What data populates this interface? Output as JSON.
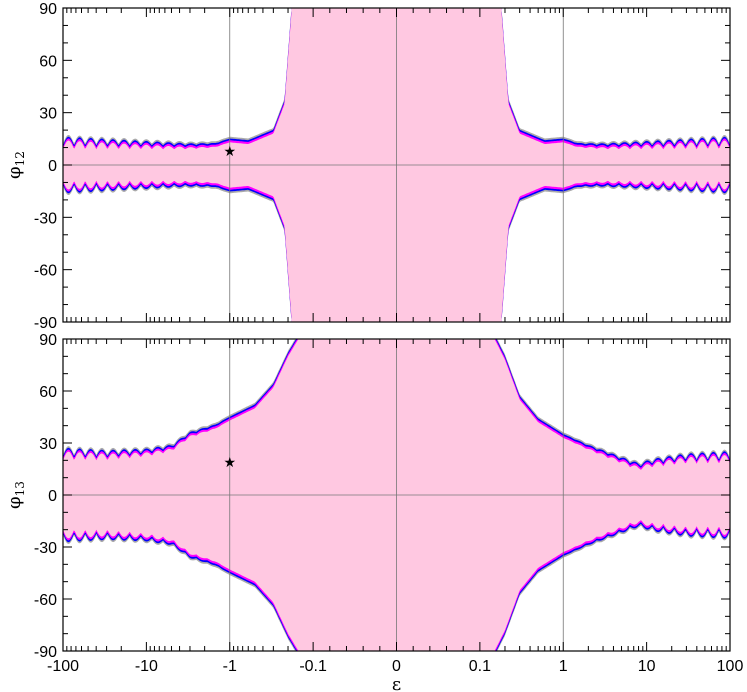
{
  "colors": {
    "allowed_fill": "#ffc8e1",
    "band_gray": "#aaaaaa",
    "band_magenta": "#ff00ff",
    "band_blue": "#0000ff",
    "frame": "#000000",
    "grid": "#777777"
  },
  "chart_data": [
    {
      "type": "area",
      "ylabel_main": "φ",
      "ylabel_sub": "12",
      "xscale": "symmetric-log",
      "xlim": [
        -100,
        100
      ],
      "ylim": [
        -90,
        90
      ],
      "xticks": [
        "-100",
        "-10",
        "-1",
        "-0.1",
        "0",
        "0.1",
        "1",
        "10",
        "100"
      ],
      "yticks": [
        "90",
        "60",
        "30",
        "0",
        "-30",
        "-60",
        "-90"
      ],
      "x_tick_values": [
        -100,
        -10,
        -1,
        -0.1,
        0,
        0.1,
        1,
        10,
        100
      ],
      "y_tick_values": [
        90,
        60,
        30,
        0,
        -30,
        -60,
        -90
      ],
      "grid": true,
      "marker": {
        "symbol": "★",
        "x": -1,
        "y": 8
      },
      "boundary": {
        "x": [
          -100,
          -30,
          -10,
          -3,
          -1.5,
          -1,
          -0.6,
          -0.3,
          -0.22,
          -0.19,
          -0.18
        ],
        "upper": [
          9,
          9,
          9,
          9,
          10,
          13,
          12,
          18,
          35,
          75,
          90
        ]
      }
    },
    {
      "type": "area",
      "xlabel": "ε",
      "ylabel_main": "φ",
      "ylabel_sub": "13",
      "xscale": "symmetric-log",
      "xlim": [
        -100,
        100
      ],
      "ylim": [
        -90,
        90
      ],
      "xticks": [
        "-100",
        "-10",
        "-1",
        "-0.1",
        "0",
        "0.1",
        "1",
        "10",
        "100"
      ],
      "yticks": [
        "90",
        "60",
        "30",
        "0",
        "-30",
        "-60",
        "-90"
      ],
      "x_tick_values": [
        -100,
        -10,
        -1,
        -0.1,
        0,
        0.1,
        1,
        10,
        100
      ],
      "y_tick_values": [
        90,
        60,
        30,
        0,
        -30,
        -60,
        -90
      ],
      "grid": true,
      "marker": {
        "symbol": "★",
        "x": -1,
        "y": 19
      },
      "boundary": {
        "x": [
          -100,
          -30,
          -10,
          -5,
          -3,
          -1.5,
          -1,
          -0.5,
          -0.3,
          -0.2,
          -0.15
        ],
        "upper": [
          20,
          20,
          22,
          25,
          33,
          38,
          43,
          50,
          62,
          80,
          90
        ],
        "x_pos": [
          0.15,
          0.2,
          0.3,
          0.5,
          1,
          2,
          5,
          8,
          12,
          30,
          100
        ],
        "upper_pos": [
          90,
          78,
          55,
          42,
          33,
          26,
          18,
          14,
          16,
          18,
          18
        ]
      }
    }
  ]
}
